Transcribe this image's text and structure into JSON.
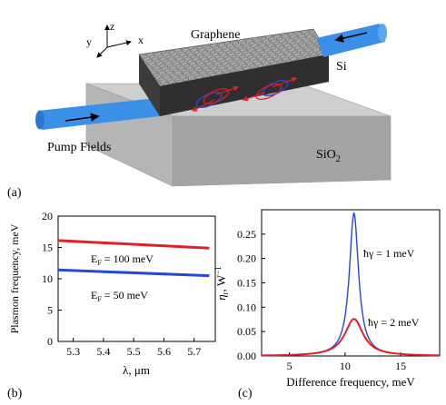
{
  "colors": {
    "plot_red": "#e0202a",
    "plot_blue": "#2846d8",
    "fiber": "#3a8fe6",
    "slab_top": "#cfcfcf",
    "slab_front": "#b5b5b5",
    "slab_side": "#9e9e9e",
    "waveguide_top": "#8c8c8c",
    "waveguide_front": "#3c3c3c",
    "waveguide_side": "#2a2a2a"
  },
  "panel_a": {
    "label": "(a)",
    "axis_labels": {
      "z": "z",
      "x": "x",
      "y": "y"
    },
    "graphene_label": "Graphene",
    "si_label": "Si",
    "sio2_label": "SiO",
    "sio2_subscript": "2",
    "pump_label": "Pump Fields"
  },
  "panel_b": {
    "label": "(b)",
    "annotation_1": {
      "main": "E",
      "sub": "F",
      "rest": " = 100 meV"
    },
    "annotation_2": {
      "main": "E",
      "sub": "F",
      "rest": " = 50 meV"
    }
  },
  "panel_c": {
    "label": "(c)",
    "annotation_1": "ħγ = 1 meV",
    "annotation_2": "ħγ = 2 meV"
  },
  "chart_data": [
    {
      "type": "line",
      "xlabel": "λ, μm",
      "ylabel": "Plasmon frequency, meV",
      "xlim": [
        5.25,
        5.77
      ],
      "ylim": [
        0,
        20
      ],
      "xticks": [
        5.3,
        5.4,
        5.5,
        5.6,
        5.7
      ],
      "yticks": [
        0,
        5,
        10,
        15,
        20
      ],
      "grid": false,
      "series": [
        {
          "name": "E_F = 100 meV",
          "x": [
            5.25,
            5.75
          ],
          "y": [
            16.1,
            14.9
          ]
        },
        {
          "name": "E_F = 50 meV",
          "x": [
            5.25,
            5.75
          ],
          "y": [
            11.4,
            10.5
          ]
        }
      ]
    },
    {
      "type": "line",
      "xlabel": "Difference frequency, meV",
      "ylabel_main": "η",
      "ylabel_sub": "r",
      "ylabel_unit": ", W",
      "ylabel_sup": "−1",
      "xlim": [
        2.5,
        18.5
      ],
      "ylim": [
        0,
        0.3
      ],
      "xticks": [
        5,
        10,
        15
      ],
      "yticks": [
        0.0,
        0.05,
        0.1,
        0.15,
        0.2,
        0.25
      ],
      "ytick_labels": [
        "0.00",
        "0.05",
        "0.10",
        "0.15",
        "0.20",
        "0.25"
      ],
      "grid": false,
      "series": [
        {
          "name": "ħγ = 1 meV",
          "center": 10.8,
          "peak": 0.293,
          "hwhm": 0.5
        },
        {
          "name": "ħγ = 2 meV",
          "center": 10.8,
          "peak": 0.076,
          "hwhm": 1.0
        }
      ]
    }
  ]
}
